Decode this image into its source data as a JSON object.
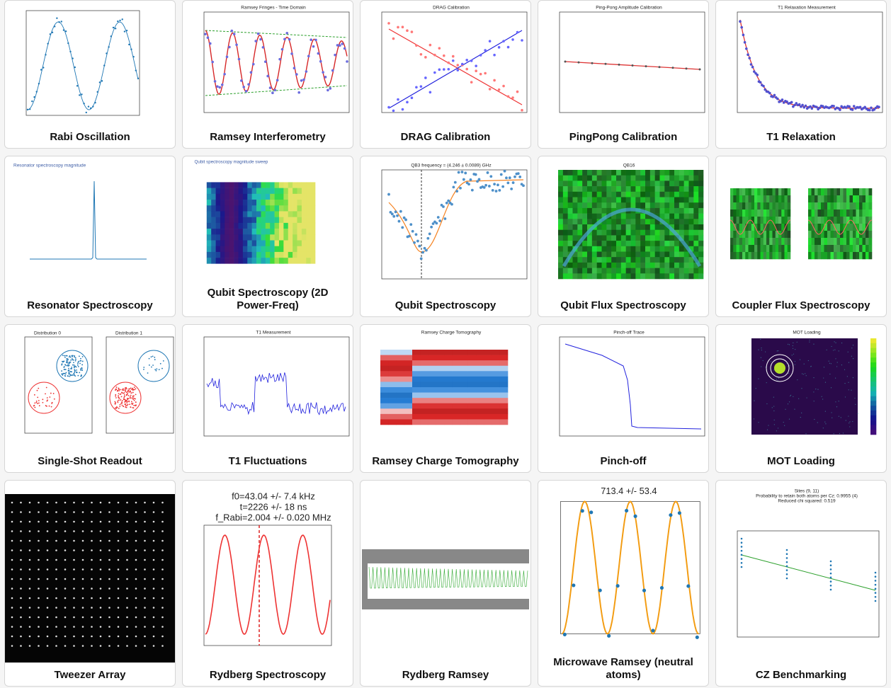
{
  "cards": [
    {
      "title": "Rabi Oscillation",
      "plot_titles": []
    },
    {
      "title": "Ramsey Interferometry",
      "plot_titles": [
        "Ramsey Fringes - Time Domain"
      ]
    },
    {
      "title": "DRAG Calibration",
      "plot_titles": [
        "DRAG Calibration"
      ]
    },
    {
      "title": "PingPong Calibration",
      "plot_titles": [
        "Ping-Pong Amplitude Calibration"
      ]
    },
    {
      "title": "T1 Relaxation",
      "plot_titles": [
        "T1 Relaxation Measurement"
      ]
    },
    {
      "title": "Resonator Spectroscopy",
      "plot_titles": [
        "Resonator spectroscopy magnitude"
      ]
    },
    {
      "title": "Qubit Spectroscopy (2D Power-Freq)",
      "plot_titles": [
        "Qubit spectroscopy magnitude sweep"
      ]
    },
    {
      "title": "Qubit Spectroscopy",
      "plot_titles": [
        "QB3 frequency = (4.246 ± 0.0089) GHz"
      ]
    },
    {
      "title": "Qubit Flux Spectroscopy",
      "plot_titles": [
        "QB16"
      ]
    },
    {
      "title": "Coupler Flux Spectroscopy",
      "plot_titles": []
    },
    {
      "title": "Single-Shot Readout",
      "plot_titles": [
        "Distribution 0",
        "Distribution 1"
      ]
    },
    {
      "title": "T1 Fluctuations",
      "plot_titles": [
        "T1 Measurement"
      ]
    },
    {
      "title": "Ramsey Charge Tomography",
      "plot_titles": [
        "Ramsey Charge Tomography"
      ]
    },
    {
      "title": "Pinch-off",
      "plot_titles": [
        "Pinch-off Trace"
      ]
    },
    {
      "title": "MOT Loading",
      "plot_titles": [
        "MOT Loading"
      ]
    },
    {
      "title": "Tweezer Array",
      "plot_titles": []
    },
    {
      "title": "Rydberg Spectroscopy",
      "plot_titles": [
        "f0=43.04 +/- 7.4 kHz",
        "t=2226 +/- 18 ns",
        "f_Rabi=2.004 +/- 0.020 MHz"
      ]
    },
    {
      "title": "Rydberg Ramsey",
      "plot_titles": []
    },
    {
      "title": "Microwave Ramsey (neutral atoms)",
      "plot_titles": [
        "713.4 +/- 53.4"
      ]
    },
    {
      "title": "CZ Benchmarking",
      "plot_titles": [
        "Sites (9, 11)",
        "Probability to retain both atoms per Cz: 0.9955 (4)",
        "Reduced chi squared: 0.519"
      ]
    }
  ]
}
